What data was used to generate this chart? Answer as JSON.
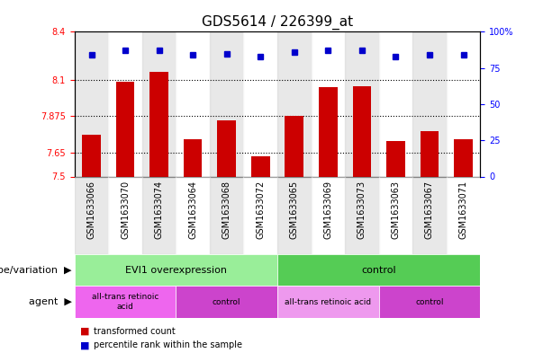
{
  "title": "GDS5614 / 226399_at",
  "samples": [
    "GSM1633066",
    "GSM1633070",
    "GSM1633074",
    "GSM1633064",
    "GSM1633068",
    "GSM1633072",
    "GSM1633065",
    "GSM1633069",
    "GSM1633073",
    "GSM1633063",
    "GSM1633067",
    "GSM1633071"
  ],
  "bar_values": [
    7.76,
    8.09,
    8.15,
    7.73,
    7.85,
    7.625,
    7.875,
    8.055,
    8.06,
    7.72,
    7.78,
    7.73
  ],
  "percentile_values": [
    84,
    87,
    87,
    84,
    85,
    83,
    86,
    87,
    87,
    83,
    84,
    84
  ],
  "ylim_left": [
    7.5,
    8.4
  ],
  "ylim_right": [
    0,
    100
  ],
  "yticks_left": [
    7.5,
    7.65,
    7.875,
    8.1,
    8.4
  ],
  "ytick_labels_left": [
    "7.5",
    "7.65",
    "7.875",
    "8.1",
    "8.4"
  ],
  "yticks_right": [
    0,
    25,
    50,
    75,
    100
  ],
  "ytick_labels_right": [
    "0",
    "25",
    "50",
    "75",
    "100%"
  ],
  "hlines": [
    7.65,
    7.875,
    8.1
  ],
  "bar_color": "#cc0000",
  "dot_color": "#0000cc",
  "bar_width": 0.55,
  "genotype_groups": [
    {
      "label": "EVI1 overexpression",
      "start": 0,
      "end": 6,
      "color": "#99EE99"
    },
    {
      "label": "control",
      "start": 6,
      "end": 12,
      "color": "#55CC55"
    }
  ],
  "agent_groups": [
    {
      "label": "all-trans retinoic\nacid",
      "start": 0,
      "end": 3,
      "color": "#EE66EE"
    },
    {
      "label": "control",
      "start": 3,
      "end": 6,
      "color": "#CC44CC"
    },
    {
      "label": "all-trans retinoic acid",
      "start": 6,
      "end": 9,
      "color": "#EE99EE"
    },
    {
      "label": "control",
      "start": 9,
      "end": 12,
      "color": "#CC44CC"
    }
  ],
  "genotype_label": "genotype/variation",
  "agent_label": "agent",
  "legend_bar_label": "transformed count",
  "legend_dot_label": "percentile rank within the sample",
  "sample_bg_color": "#d3d3d3",
  "title_fontsize": 11,
  "tick_fontsize": 7,
  "label_fontsize": 8,
  "meta_fontsize": 8
}
